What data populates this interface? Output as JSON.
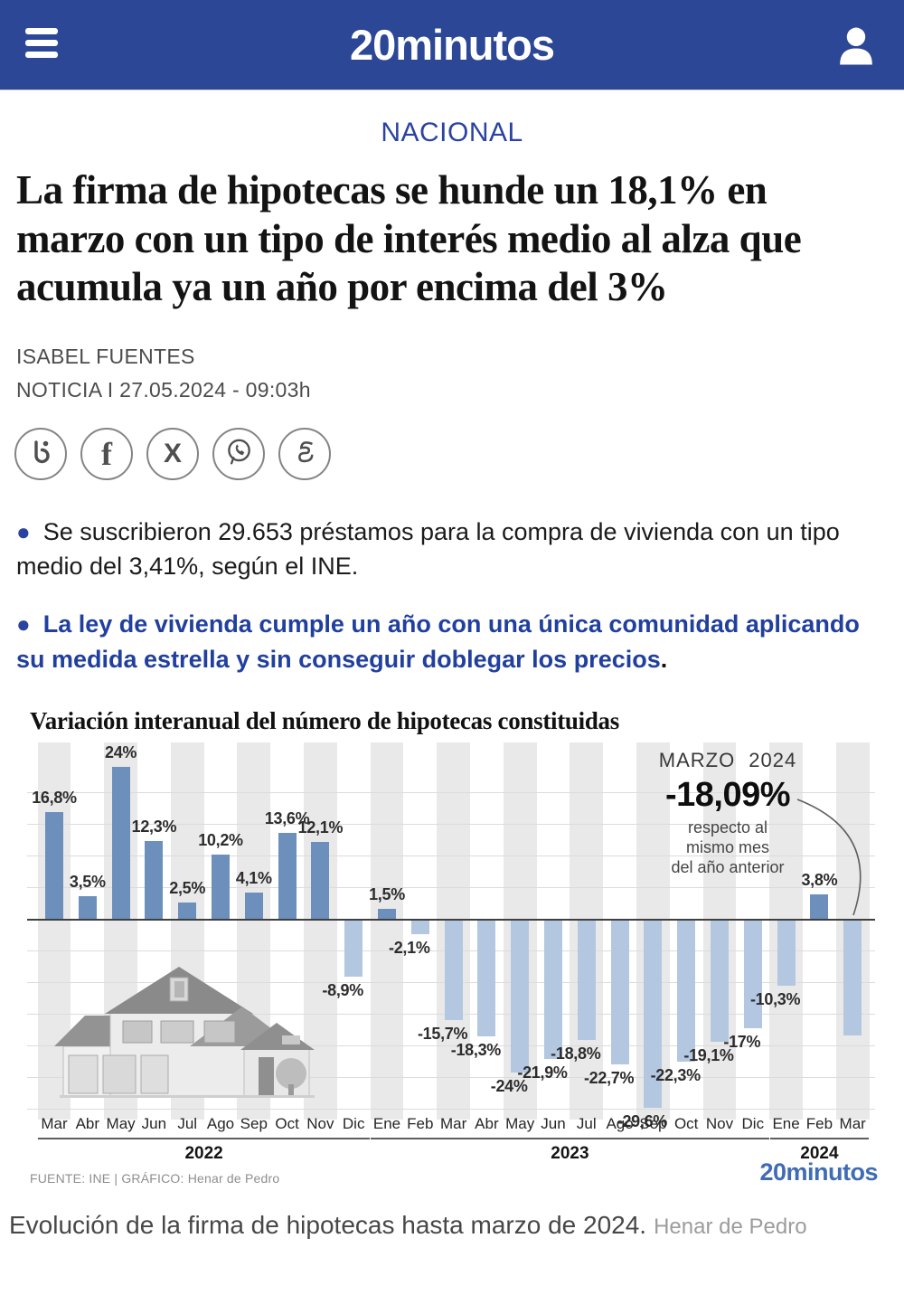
{
  "header": {
    "brand": "20minutos"
  },
  "category": "NACIONAL",
  "headline": "La firma de hipotecas se hunde un 18,1% en marzo con un tipo de interés medio al alza que acumula ya un año por encima del 3%",
  "byline": {
    "author": "ISABEL FUENTES",
    "meta": "NOTICIA I 27.05.2024 - 09:03h"
  },
  "share": {
    "icons": [
      "share-b",
      "facebook",
      "x-twitter",
      "whatsapp",
      "meneame"
    ],
    "x_glyph": "X",
    "f_glyph": "f"
  },
  "bullets": [
    {
      "text": "Se suscribieron 29.653 préstamos para la compra de vivienda con un tipo medio del 3,41%, según el INE."
    },
    {
      "text": "La ley de vivienda cumple un año con una única comunidad aplicando su medida estrella y sin conseguir doblegar los precios",
      "suffix": "."
    }
  ],
  "chart_data": {
    "type": "bar",
    "title": "Variación interanual del número de hipotecas constituidas",
    "unit": "%",
    "categories": [
      "Mar 2022",
      "Abr 2022",
      "May 2022",
      "Jun 2022",
      "Jul 2022",
      "Ago 2022",
      "Sep 2022",
      "Oct 2022",
      "Nov 2022",
      "Dic 2022",
      "Ene 2023",
      "Feb 2023",
      "Mar 2023",
      "Abr 2023",
      "May 2023",
      "Jun 2023",
      "Jul 2023",
      "Ago 2023",
      "Sep 2023",
      "Oct 2023",
      "Nov 2023",
      "Dic 2023",
      "Ene 2024",
      "Feb 2024",
      "Mar 2024"
    ],
    "series": [
      {
        "name": "Variación interanual del número de hipotecas",
        "values": [
          16.8,
          3.5,
          24,
          12.3,
          2.5,
          10.2,
          4.1,
          13.6,
          12.1,
          -8.9,
          1.5,
          -2.1,
          -15.7,
          -18.3,
          -24,
          -21.9,
          -18.8,
          -22.7,
          -29.6,
          -22.3,
          -19.1,
          -17,
          -10.3,
          3.8,
          -18.09
        ]
      }
    ],
    "value_labels": [
      "16,8%",
      "3,5%",
      "24%",
      "12,3%",
      "2,5%",
      "10,2%",
      "4,1%",
      "13,6%",
      "12,1%",
      "-8,9%",
      "1,5%",
      "-2,1%",
      "-15,7%",
      "-18,3%",
      "-24%",
      "-21,9%",
      "-18,8%",
      "-22,7%",
      "-29,6%",
      "-22,3%",
      "-19,1%",
      "-17%",
      "-10,3%",
      "3,8%",
      ""
    ],
    "ylim": [
      -32,
      26
    ],
    "gridline_step": 5,
    "grid": true,
    "legend": "none",
    "years": [
      {
        "label": "2022",
        "months": [
          "Mar",
          "Abr",
          "May",
          "Jun",
          "Jul",
          "Ago",
          "Sep",
          "Oct",
          "Nov",
          "Dic"
        ]
      },
      {
        "label": "2023",
        "months": [
          "Ene",
          "Feb",
          "Mar",
          "Abr",
          "May",
          "Jun",
          "Jul",
          "Ago",
          "Sep",
          "Oct",
          "Nov",
          "Dic"
        ]
      },
      {
        "label": "2024",
        "months": [
          "Ene",
          "Feb",
          "Mar"
        ]
      }
    ],
    "annotation": {
      "kicker": "MARZO 2024",
      "value": "-18,09%",
      "note_lines": [
        "respecto al",
        "mismo mes",
        "del año anterior"
      ]
    },
    "source": "FUENTE: INE  |  GRÁFICO: Henar de Pedro",
    "brand": "20minutos",
    "colors": {
      "positive_bar": "#6c8fbc",
      "negative_bar": "#b3c7e1",
      "stripe": "#e9e9e9"
    }
  },
  "caption": {
    "text": "Evolución de la firma de hipotecas hasta marzo de 2024.",
    "credit": "Henar de Pedro"
  },
  "colors": {
    "header_blue": "#2b4795",
    "accent_blue": "#2b43a0",
    "link_blue": "#21409e",
    "brand_blue": "#3f6cb4"
  }
}
